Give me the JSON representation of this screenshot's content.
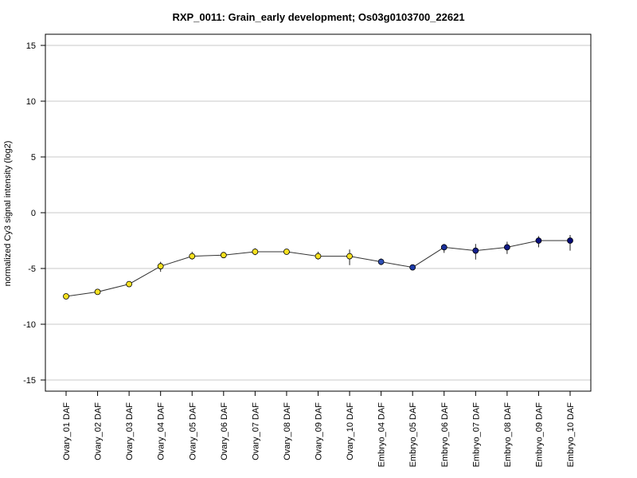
{
  "chart_data": {
    "type": "line",
    "title": "RXP_0011: Grain_early development; Os03g0103700_22621",
    "xlabel": "",
    "ylabel": "normalized Cy3 signal intensity (log2)",
    "ylim": [
      -16,
      16
    ],
    "yticks": [
      -15,
      -10,
      -5,
      0,
      5,
      10,
      15
    ],
    "grid": true,
    "categories": [
      "Ovary_01 DAF",
      "Ovary_02 DAF",
      "Ovary_03 DAF",
      "Ovary_04 DAF",
      "Ovary_05 DAF",
      "Ovary_06 DAF",
      "Ovary_07 DAF",
      "Ovary_08 DAF",
      "Ovary_09 DAF",
      "Ovary_10 DAF",
      "Embryo_04 DAF",
      "Embryo_05 DAF",
      "Embryo_06 DAF",
      "Embryo_07 DAF",
      "Embryo_08 DAF",
      "Embryo_09 DAF",
      "Embryo_10 DAF"
    ],
    "values": [
      -7.5,
      -7.1,
      -6.4,
      -4.8,
      -3.9,
      -3.8,
      -3.5,
      -3.5,
      -3.9,
      -3.9,
      -4.4,
      -4.9,
      -3.1,
      -3.4,
      -3.1,
      -2.5,
      -2.5
    ],
    "error_low": [
      -7.7,
      -7.3,
      -6.6,
      -5.3,
      -4.2,
      -4.0,
      -3.8,
      -3.6,
      -4.2,
      -4.7,
      -4.7,
      -4.9,
      -3.6,
      -4.2,
      -3.7,
      -3.1,
      -3.4
    ],
    "error_high": [
      -7.3,
      -6.9,
      -6.2,
      -4.4,
      -3.5,
      -3.6,
      -3.2,
      -3.4,
      -3.5,
      -3.3,
      -4.1,
      -4.8,
      -2.8,
      -2.8,
      -2.6,
      -2.1,
      -2.0
    ],
    "point_colors": [
      "#f5e020",
      "#f5e020",
      "#f5e020",
      "#f5e020",
      "#f5e020",
      "#f5e020",
      "#f5e020",
      "#f5e020",
      "#f5e020",
      "#f5e020",
      "#2e4fb5",
      "#1d3aa8",
      "#1a2f9a",
      "#14208e",
      "#101a86",
      "#0a117e",
      "#060b76"
    ]
  }
}
